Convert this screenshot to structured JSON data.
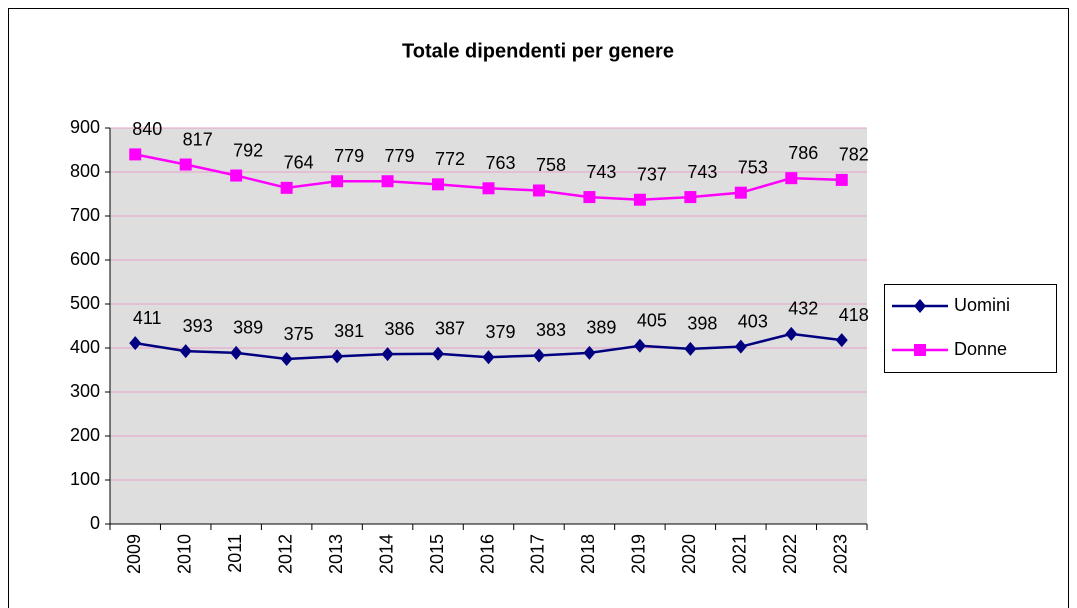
{
  "chart_data": {
    "type": "line",
    "title": "Totale dipendenti per genere",
    "categories": [
      "2009",
      "2010",
      "2011",
      "2012",
      "2013",
      "2014",
      "2015",
      "2016",
      "2017",
      "2018",
      "2019",
      "2020",
      "2021",
      "2022",
      "2023"
    ],
    "series": [
      {
        "name": "Uomini",
        "color": "#000080",
        "marker": "diamond",
        "values": [
          411,
          393,
          389,
          375,
          381,
          386,
          387,
          379,
          383,
          389,
          405,
          398,
          403,
          432,
          418
        ]
      },
      {
        "name": "Donne",
        "color": "#ff00ff",
        "marker": "square",
        "values": [
          840,
          817,
          792,
          764,
          779,
          779,
          772,
          763,
          758,
          743,
          737,
          743,
          753,
          786,
          782
        ]
      }
    ],
    "ylim": [
      0,
      900
    ],
    "yticks": [
      0,
      100,
      200,
      300,
      400,
      500,
      600,
      700,
      800,
      900
    ],
    "grid": true,
    "legend": "right"
  }
}
